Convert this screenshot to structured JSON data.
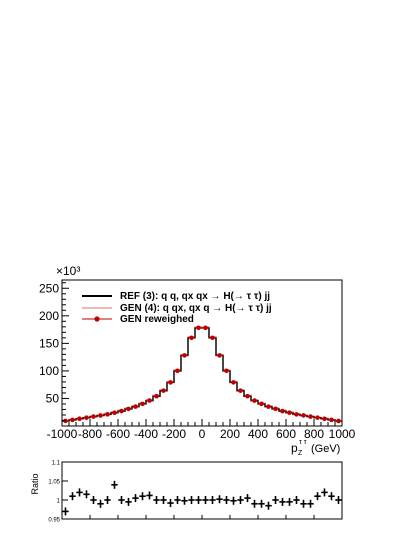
{
  "chart_data": [
    {
      "type": "line",
      "exponent_label": "×10³",
      "xlabel_main": "p",
      "xlabel_sub": "Z",
      "xlabel_sup": "τ τ",
      "xlabel_unit": "(GeV)",
      "xlim": [
        -1000,
        1000
      ],
      "ylim": [
        0,
        265
      ],
      "x_ticks": [
        -1000,
        -800,
        -600,
        -400,
        -200,
        0,
        200,
        400,
        600,
        800,
        1000
      ],
      "y_ticks": [
        50,
        100,
        150,
        200,
        250
      ],
      "legend_position": "top-left",
      "bin_edges": [
        -1000,
        -950,
        -900,
        -850,
        -800,
        -750,
        -700,
        -650,
        -600,
        -550,
        -500,
        -450,
        -400,
        -350,
        -300,
        -250,
        -200,
        -150,
        -100,
        -50,
        0,
        50,
        100,
        150,
        200,
        250,
        300,
        350,
        400,
        450,
        500,
        550,
        600,
        650,
        700,
        750,
        800,
        850,
        900,
        950,
        1000
      ],
      "series": [
        {
          "name": "REF (3): q q, qx qx  → H(→ τ τ) jj",
          "color": "#000000",
          "style": "step",
          "values": [
            9,
            11,
            13,
            15,
            17,
            19,
            21,
            24,
            27,
            31,
            35,
            40,
            46,
            54,
            64,
            79,
            100,
            128,
            160,
            178,
            178,
            160,
            128,
            100,
            79,
            64,
            54,
            46,
            40,
            35,
            31,
            27,
            24,
            21,
            19,
            17,
            15,
            13,
            11,
            9
          ]
        },
        {
          "name": "GEN (4): q qx, qx q   → H(→ τ τ) jj",
          "color": "#e8a0a0",
          "style": "step",
          "values": [
            10,
            12,
            14,
            16,
            18,
            20,
            23,
            26,
            29,
            33,
            37,
            42,
            48,
            56,
            66,
            81,
            102,
            130,
            162,
            180,
            180,
            162,
            130,
            102,
            81,
            66,
            56,
            48,
            42,
            37,
            33,
            29,
            26,
            23,
            20,
            18,
            16,
            14,
            12,
            10
          ]
        },
        {
          "name": "GEN reweighed",
          "color": "#c00000",
          "style": "markers",
          "values": [
            9.2,
            11.1,
            13.2,
            15.1,
            17.2,
            19.1,
            21.2,
            24.1,
            27.2,
            31.1,
            35.2,
            40.1,
            46.3,
            54.1,
            64.2,
            79.1,
            100.3,
            128.2,
            160.1,
            178.3,
            178.2,
            160.2,
            128.1,
            100.2,
            79.2,
            64.1,
            54.2,
            46.1,
            40.2,
            35.1,
            31.2,
            27.1,
            24.2,
            21.1,
            19.2,
            17.1,
            15.2,
            13.1,
            11.2,
            9.1
          ]
        }
      ]
    },
    {
      "type": "scatter",
      "ylabel": "Ratio",
      "xlim": [
        -1000,
        1000
      ],
      "ylim": [
        0.95,
        1.1
      ],
      "y_ticks": [
        {
          "value": 0.95,
          "label": "0.95"
        },
        {
          "value": 1.0,
          "label": "1"
        },
        {
          "value": 1.05,
          "label": "1.05"
        },
        {
          "value": 1.1,
          "label": "1.1"
        }
      ],
      "x": [
        -975,
        -925,
        -875,
        -825,
        -775,
        -725,
        -675,
        -625,
        -575,
        -525,
        -475,
        -425,
        -375,
        -325,
        -275,
        -225,
        -175,
        -125,
        -75,
        -25,
        25,
        75,
        125,
        175,
        225,
        275,
        325,
        375,
        425,
        475,
        525,
        575,
        625,
        675,
        725,
        775,
        825,
        875,
        925,
        975
      ],
      "values": [
        0.97,
        1.01,
        1.02,
        1.015,
        1.0,
        0.99,
        1.0,
        1.04,
        1.0,
        0.995,
        1.005,
        1.01,
        1.012,
        1.0,
        1.0,
        0.992,
        1.0,
        0.998,
        1.0,
        1.0,
        1.0,
        1.0,
        1.002,
        1.0,
        0.998,
        1.0,
        1.005,
        0.99,
        0.99,
        0.985,
        1.0,
        0.995,
        0.995,
        1.0,
        0.99,
        0.99,
        1.01,
        1.02,
        1.01,
        1.0
      ]
    }
  ]
}
